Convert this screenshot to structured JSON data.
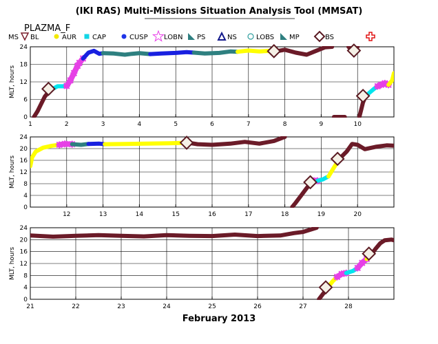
{
  "title": "(IKI RAS) Multi-Missions Situation Analysis Tool (MMSAT)",
  "satellite": "PLAZMA_F",
  "legend": {
    "prefix": "MS",
    "items": [
      {
        "label": "BL",
        "marker": "triangle-down-open",
        "color": "#7a1e2c"
      },
      {
        "label": "AUR",
        "marker": "circle",
        "color": "#f2e900"
      },
      {
        "label": "CAP",
        "marker": "square",
        "color": "#12d6e6"
      },
      {
        "label": "CUSP",
        "marker": "circle",
        "color": "#1f35e8"
      },
      {
        "label": "LOBN",
        "marker": "star-open",
        "color": "#e83ce8"
      },
      {
        "label": "PS",
        "marker": "triangle-right",
        "color": "#2e7f80"
      },
      {
        "label": "NS",
        "marker": "triangle-open",
        "color": "#141a8c"
      },
      {
        "label": "LOBS",
        "marker": "circle-open",
        "color": "#2e9e9e"
      },
      {
        "label": "MP",
        "marker": "triangle-right",
        "color": "#2e7f80"
      },
      {
        "label": "BS",
        "marker": "diamond-open",
        "color": "#5a1a22"
      },
      {
        "label": "",
        "marker": "cross-open",
        "color": "#e01010"
      }
    ]
  },
  "colors": {
    "sw": "#6b1b28",
    "mp": "#e640e6",
    "pl": "#ffff00",
    "cap": "#00e5ee",
    "cusp": "#1820e0",
    "ps": "#2e8080",
    "grid": "#000000"
  },
  "chart_data": [
    {
      "type": "line",
      "xlabel": "",
      "ylabel": "MLT, hours",
      "xlim": [
        1,
        11
      ],
      "ylim": [
        0,
        24
      ],
      "x_ticks": [
        1,
        2,
        3,
        4,
        5,
        6,
        7,
        8,
        9,
        10
      ],
      "y_ticks": [
        0,
        6,
        12,
        18,
        24
      ],
      "segments": [
        {
          "region": "sw",
          "points": [
            [
              1.1,
              0
            ],
            [
              1.2,
              2
            ],
            [
              1.3,
              4.5
            ],
            [
              1.4,
              7
            ],
            [
              1.5,
              8.5
            ],
            [
              1.6,
              9.5
            ]
          ]
        },
        {
          "region": "cap",
          "points": [
            [
              1.6,
              9.5
            ],
            [
              1.75,
              10.5
            ],
            [
              1.9,
              10.5
            ],
            [
              2.0,
              10.6
            ]
          ]
        },
        {
          "region": "mp",
          "points": [
            [
              2.0,
              10.6
            ],
            [
              2.1,
              12.5
            ],
            [
              2.2,
              15
            ],
            [
              2.3,
              17.5
            ],
            [
              2.35,
              18.5
            ],
            [
              2.45,
              20
            ]
          ]
        },
        {
          "region": "cusp",
          "points": [
            [
              2.45,
              20
            ],
            [
              2.6,
              22
            ],
            [
              2.75,
              22.6
            ],
            [
              2.9,
              21.6
            ],
            [
              3.0,
              21.8
            ]
          ]
        },
        {
          "region": "ps",
          "points": [
            [
              3.0,
              21.8
            ],
            [
              3.3,
              21.7
            ],
            [
              3.6,
              21.3
            ],
            [
              3.8,
              21.6
            ],
            [
              4.0,
              21.8
            ],
            [
              4.3,
              21.5
            ]
          ]
        },
        {
          "region": "cusp",
          "points": [
            [
              4.3,
              21.5
            ],
            [
              4.6,
              21.7
            ],
            [
              5.0,
              21.9
            ],
            [
              5.3,
              22.2
            ],
            [
              5.5,
              22
            ]
          ]
        },
        {
          "region": "ps",
          "points": [
            [
              5.5,
              22
            ],
            [
              5.8,
              21.7
            ],
            [
              6.2,
              21.9
            ],
            [
              6.5,
              22.4
            ],
            [
              6.7,
              22.3
            ]
          ]
        },
        {
          "region": "pl",
          "points": [
            [
              6.7,
              22.3
            ],
            [
              7.0,
              22.7
            ],
            [
              7.3,
              22.4
            ],
            [
              7.6,
              22.6
            ]
          ]
        },
        {
          "region": "sw",
          "points": [
            [
              7.6,
              22.6
            ],
            [
              7.7,
              22.3
            ],
            [
              8.0,
              23
            ],
            [
              8.3,
              22
            ],
            [
              8.6,
              21.3
            ],
            [
              8.8,
              22.3
            ],
            [
              9.1,
              23.8
            ],
            [
              9.3,
              24
            ]
          ]
        },
        {
          "region": "sw",
          "points": [
            [
              9.75,
              24
            ],
            [
              9.85,
              23
            ],
            [
              9.9,
              22.6
            ],
            [
              10.0,
              24
            ]
          ]
        },
        {
          "region": "sw",
          "points": [
            [
              9.35,
              0
            ],
            [
              9.65,
              0
            ]
          ]
        },
        {
          "region": "sw",
          "points": [
            [
              10.05,
              0
            ],
            [
              10.1,
              2.5
            ],
            [
              10.15,
              5
            ],
            [
              10.2,
              6.5
            ]
          ]
        },
        {
          "region": "cap",
          "points": [
            [
              10.2,
              6.5
            ],
            [
              10.3,
              8
            ],
            [
              10.45,
              9.6
            ],
            [
              10.55,
              10.5
            ]
          ]
        },
        {
          "region": "mp",
          "points": [
            [
              10.55,
              10.5
            ],
            [
              10.65,
              11
            ],
            [
              10.75,
              11.5
            ],
            [
              10.85,
              11
            ]
          ]
        },
        {
          "region": "pl",
          "points": [
            [
              10.85,
              11
            ],
            [
              10.95,
              12.5
            ],
            [
              11.0,
              15
            ]
          ]
        }
      ],
      "bow_shock": [
        [
          1.5,
          9.6
        ],
        [
          7.7,
          22.5
        ],
        [
          9.9,
          22.7
        ],
        [
          10.15,
          7.2
        ]
      ]
    },
    {
      "type": "line",
      "xlabel": "",
      "ylabel": "MLT, hours",
      "xlim": [
        11,
        21
      ],
      "ylim": [
        0,
        24
      ],
      "x_ticks": [
        12,
        13,
        14,
        15,
        16,
        17,
        18,
        19,
        20
      ],
      "y_ticks": [
        0,
        4,
        8,
        12,
        16,
        20,
        24
      ],
      "segments": [
        {
          "region": "pl",
          "points": [
            [
              11.0,
              14
            ],
            [
              11.05,
              17
            ],
            [
              11.15,
              19
            ],
            [
              11.35,
              20.3
            ],
            [
              11.6,
              21
            ],
            [
              11.8,
              21.3
            ]
          ]
        },
        {
          "region": "mp",
          "points": [
            [
              11.8,
              21.3
            ],
            [
              11.95,
              21.6
            ],
            [
              12.15,
              21.5
            ]
          ]
        },
        {
          "region": "ps",
          "points": [
            [
              12.15,
              21.5
            ],
            [
              12.4,
              21.3
            ],
            [
              12.6,
              21.6
            ]
          ]
        },
        {
          "region": "cusp",
          "points": [
            [
              12.6,
              21.6
            ],
            [
              12.9,
              21.7
            ],
            [
              13.05,
              21.5
            ]
          ]
        },
        {
          "region": "pl",
          "points": [
            [
              13.05,
              21.5
            ],
            [
              13.6,
              21.6
            ],
            [
              14.2,
              21.7
            ],
            [
              14.8,
              21.8
            ],
            [
              15.35,
              22
            ]
          ]
        },
        {
          "region": "sw",
          "points": [
            [
              15.35,
              22
            ],
            [
              15.6,
              21.5
            ],
            [
              16.0,
              21.3
            ],
            [
              16.5,
              21.7
            ],
            [
              16.9,
              22.3
            ],
            [
              17.3,
              21.7
            ],
            [
              17.7,
              22.6
            ],
            [
              18.0,
              24
            ]
          ]
        },
        {
          "region": "sw",
          "points": [
            [
              18.2,
              0
            ],
            [
              18.3,
              1.5
            ],
            [
              18.45,
              4
            ],
            [
              18.6,
              6.5
            ],
            [
              18.7,
              8
            ]
          ]
        },
        {
          "region": "mp",
          "points": [
            [
              18.7,
              8
            ],
            [
              18.8,
              9
            ],
            [
              18.9,
              9
            ]
          ]
        },
        {
          "region": "cap",
          "points": [
            [
              18.9,
              9
            ],
            [
              19.05,
              9.5
            ],
            [
              19.2,
              10.5
            ]
          ]
        },
        {
          "region": "pl",
          "points": [
            [
              19.2,
              10.5
            ],
            [
              19.35,
              13.5
            ],
            [
              19.5,
              16.5
            ]
          ]
        },
        {
          "region": "sw",
          "points": [
            [
              19.5,
              16.5
            ],
            [
              19.7,
              19
            ],
            [
              19.85,
              21.6
            ],
            [
              20.0,
              21.3
            ],
            [
              20.2,
              19.8
            ],
            [
              20.5,
              20.6
            ],
            [
              20.8,
              21.1
            ],
            [
              21.0,
              21
            ]
          ]
        }
      ],
      "bow_shock": [
        [
          15.3,
          22
        ],
        [
          18.7,
          8.5
        ],
        [
          19.45,
          16.5
        ]
      ]
    },
    {
      "type": "line",
      "xlabel": "February 2013",
      "ylabel": "MLT, hours",
      "xlim": [
        21,
        29
      ],
      "ylim": [
        0,
        24
      ],
      "x_ticks": [
        21,
        22,
        23,
        24,
        25,
        26,
        27,
        28
      ],
      "y_ticks": [
        0,
        4,
        8,
        12,
        16,
        20,
        24
      ],
      "segments": [
        {
          "region": "sw",
          "points": [
            [
              21.0,
              21.4
            ],
            [
              21.5,
              21.0
            ],
            [
              22.0,
              21.3
            ],
            [
              22.5,
              21.5
            ],
            [
              23.0,
              21.3
            ],
            [
              23.5,
              21.1
            ],
            [
              24.0,
              21.5
            ],
            [
              24.5,
              21.3
            ],
            [
              25.0,
              21.2
            ],
            [
              25.5,
              21.7
            ],
            [
              26.0,
              21.2
            ],
            [
              26.5,
              21.4
            ],
            [
              26.8,
              22.2
            ],
            [
              27.0,
              22.6
            ],
            [
              27.3,
              24
            ]
          ]
        },
        {
          "region": "sw",
          "points": [
            [
              27.35,
              0
            ],
            [
              27.45,
              2
            ],
            [
              27.55,
              4
            ]
          ]
        },
        {
          "region": "pl",
          "points": [
            [
              27.55,
              4
            ],
            [
              27.65,
              6
            ],
            [
              27.75,
              7.5
            ]
          ]
        },
        {
          "region": "mp",
          "points": [
            [
              27.75,
              7.5
            ],
            [
              27.85,
              8.5
            ],
            [
              27.95,
              8.8
            ]
          ]
        },
        {
          "region": "cap",
          "points": [
            [
              27.95,
              8.8
            ],
            [
              28.1,
              9.5
            ],
            [
              28.2,
              10.5
            ]
          ]
        },
        {
          "region": "mp",
          "points": [
            [
              28.2,
              10.5
            ],
            [
              28.3,
              12.2
            ],
            [
              28.4,
              13.5
            ]
          ]
        },
        {
          "region": "pl",
          "points": [
            [
              28.4,
              13.5
            ],
            [
              28.5,
              15
            ]
          ]
        },
        {
          "region": "sw",
          "points": [
            [
              28.5,
              15
            ],
            [
              28.6,
              17
            ],
            [
              28.7,
              18.8
            ],
            [
              28.8,
              19.8
            ],
            [
              28.95,
              20
            ],
            [
              29.0,
              19.8
            ]
          ]
        }
      ],
      "bow_shock": [
        [
          27.5,
          4
        ],
        [
          28.45,
          15.3
        ]
      ]
    }
  ]
}
